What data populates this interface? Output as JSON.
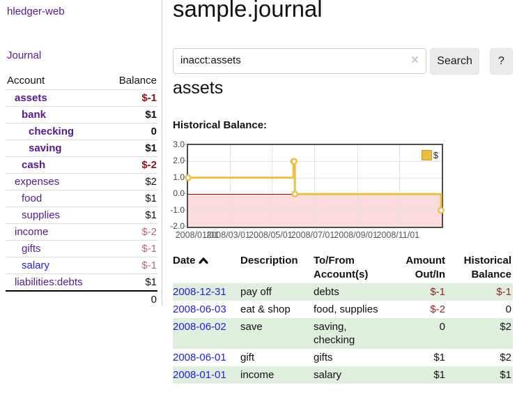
{
  "app": {
    "title": "hledger-web"
  },
  "nav": {
    "journal_label": "Journal"
  },
  "sidebar": {
    "header": {
      "account": "Account",
      "balance": "Balance"
    },
    "accounts": [
      {
        "name": "assets",
        "balance": "$-1",
        "depth": 0,
        "bold": true,
        "negative": true
      },
      {
        "name": "bank",
        "balance": "$1",
        "depth": 1,
        "bold": true,
        "negative": false
      },
      {
        "name": "checking",
        "balance": "0",
        "depth": 2,
        "bold": true,
        "negative": false
      },
      {
        "name": "saving",
        "balance": "$1",
        "depth": 2,
        "bold": true,
        "negative": false
      },
      {
        "name": "cash",
        "balance": "$-2",
        "depth": 1,
        "bold": true,
        "negative": true
      },
      {
        "name": "expenses",
        "balance": "$2",
        "depth": 0,
        "bold": false,
        "negative": false
      },
      {
        "name": "food",
        "balance": "$1",
        "depth": 1,
        "bold": false,
        "negative": false
      },
      {
        "name": "supplies",
        "balance": "$1",
        "depth": 1,
        "bold": false,
        "negative": false
      },
      {
        "name": "income",
        "balance": "$-2",
        "depth": 0,
        "bold": false,
        "negative": true
      },
      {
        "name": "gifts",
        "balance": "$-1",
        "depth": 1,
        "bold": false,
        "negative": true
      },
      {
        "name": "salary",
        "balance": "$-1",
        "depth": 1,
        "bold": false,
        "negative": true,
        "unvisited": true
      },
      {
        "name": "liabilities:debts",
        "balance": "$1",
        "depth": 0,
        "bold": false,
        "negative": false
      }
    ],
    "total": "0"
  },
  "header": {
    "title": "sample.journal"
  },
  "search": {
    "query": "inacct:assets",
    "clear_icon": "×",
    "button_label": "Search",
    "help_label": "?"
  },
  "register": {
    "heading": "assets",
    "chart_label": "Historical Balance:",
    "table": {
      "headers": [
        "Date",
        "Description",
        "To/From Account(s)",
        "Amount Out/In",
        "Historical Balance"
      ],
      "rows": [
        {
          "date": "2008-12-31",
          "description": "pay off",
          "accounts": "debts",
          "amount": "$-1",
          "amount_neg": true,
          "balance": "$-1",
          "balance_neg": true
        },
        {
          "date": "2008-06-03",
          "description": "eat & shop",
          "accounts": "food, supplies",
          "amount": "$-2",
          "amount_neg": true,
          "balance": "0",
          "balance_neg": false
        },
        {
          "date": "2008-06-02",
          "description": "save",
          "accounts": "saving, checking",
          "amount": "0",
          "amount_neg": false,
          "balance": "$2",
          "balance_neg": false
        },
        {
          "date": "2008-06-01",
          "description": "gift",
          "accounts": "gifts",
          "amount": "$1",
          "amount_neg": false,
          "balance": "$2",
          "balance_neg": false
        },
        {
          "date": "2008-01-01",
          "description": "income",
          "accounts": "salary",
          "amount": "$1",
          "amount_neg": false,
          "balance": "$1",
          "balance_neg": false
        }
      ]
    }
  },
  "chart_data": {
    "type": "line",
    "title": "Historical Balance",
    "step": true,
    "series": [
      {
        "name": "$",
        "points": [
          {
            "x": "2008-01-01",
            "y": 1
          },
          {
            "x": "2008-06-01",
            "y": 2
          },
          {
            "x": "2008-06-02",
            "y": 2
          },
          {
            "x": "2008-06-03",
            "y": 0
          },
          {
            "x": "2008-12-31",
            "y": -1
          }
        ]
      }
    ],
    "xrange": [
      "2008-01-01",
      "2009-01-01"
    ],
    "ylim": [
      -2.0,
      3.0
    ],
    "yticks": [
      3.0,
      2.0,
      1.0,
      0.0,
      -1.0,
      -2.0
    ],
    "xticks": [
      "2008/01/01",
      "2008/03/01",
      "2008/05/01",
      "2008/07/01",
      "2008/09/01",
      "2008/11/01"
    ],
    "legend_position": "top-right",
    "grid": true,
    "line_color": "#e8c04a",
    "marker_fill": "#ffffff",
    "negative_region_color": "#fbdbdb",
    "zero_line_color": "#8b0000"
  }
}
